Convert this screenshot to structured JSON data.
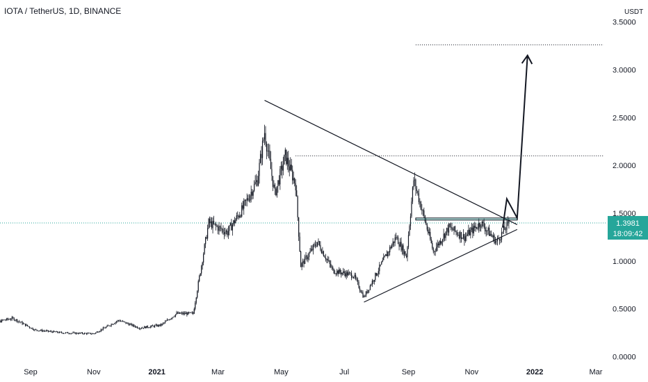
{
  "title": "IOTA / TetherUS, 1D, BINANCE",
  "price_badge": {
    "price": "1.3981",
    "countdown": "18:09:42",
    "color": "#26a69a"
  },
  "chart_data": {
    "type": "candlestick",
    "title": "IOTA / TetherUS, 1D, BINANCE",
    "y_unit": "USDT",
    "ylim": [
      0,
      3.6
    ],
    "y_ticks": [
      "3.5000",
      "3.0000",
      "2.5000",
      "2.0000",
      "1.5000",
      "1.0000",
      "0.5000",
      "0.0000"
    ],
    "x_ticks": [
      {
        "label": "Sep",
        "date": "2020-09-01",
        "bold": false
      },
      {
        "label": "Nov",
        "date": "2020-11-01",
        "bold": false
      },
      {
        "label": "2021",
        "date": "2021-01-01",
        "bold": true
      },
      {
        "label": "Mar",
        "date": "2021-03-01",
        "bold": false
      },
      {
        "label": "May",
        "date": "2021-05-01",
        "bold": false
      },
      {
        "label": "Jul",
        "date": "2021-07-01",
        "bold": false
      },
      {
        "label": "Sep",
        "date": "2021-09-01",
        "bold": false
      },
      {
        "label": "Nov",
        "date": "2021-11-01",
        "bold": false
      },
      {
        "label": "2022",
        "date": "2022-01-01",
        "bold": true
      },
      {
        "label": "Mar",
        "date": "2022-03-01",
        "bold": false
      }
    ],
    "xlim": [
      "2020-07-20",
      "2022-03-10"
    ],
    "last_price": 1.3981,
    "price_path": [
      {
        "date": "2020-07-20",
        "close": 0.3
      },
      {
        "date": "2020-08-05",
        "close": 0.38
      },
      {
        "date": "2020-08-15",
        "close": 0.4
      },
      {
        "date": "2020-09-05",
        "close": 0.28
      },
      {
        "date": "2020-10-01",
        "close": 0.25
      },
      {
        "date": "2020-11-01",
        "close": 0.24
      },
      {
        "date": "2020-11-25",
        "close": 0.38
      },
      {
        "date": "2020-12-15",
        "close": 0.3
      },
      {
        "date": "2021-01-05",
        "close": 0.33
      },
      {
        "date": "2021-01-20",
        "close": 0.45
      },
      {
        "date": "2021-02-05",
        "close": 0.45
      },
      {
        "date": "2021-02-20",
        "close": 1.4
      },
      {
        "date": "2021-03-10",
        "close": 1.3
      },
      {
        "date": "2021-03-25",
        "close": 1.55
      },
      {
        "date": "2021-04-08",
        "close": 1.85
      },
      {
        "date": "2021-04-15",
        "close": 2.35
      },
      {
        "date": "2021-04-25",
        "close": 1.7
      },
      {
        "date": "2021-05-05",
        "close": 2.1
      },
      {
        "date": "2021-05-15",
        "close": 1.8
      },
      {
        "date": "2021-05-20",
        "close": 0.95
      },
      {
        "date": "2021-06-05",
        "close": 1.2
      },
      {
        "date": "2021-06-20",
        "close": 0.9
      },
      {
        "date": "2021-07-10",
        "close": 0.85
      },
      {
        "date": "2021-07-20",
        "close": 0.62
      },
      {
        "date": "2021-08-05",
        "close": 0.95
      },
      {
        "date": "2021-08-20",
        "close": 1.25
      },
      {
        "date": "2021-08-30",
        "close": 1.05
      },
      {
        "date": "2021-09-06",
        "close": 1.85
      },
      {
        "date": "2021-09-15",
        "close": 1.5
      },
      {
        "date": "2021-09-25",
        "close": 1.1
      },
      {
        "date": "2021-10-10",
        "close": 1.35
      },
      {
        "date": "2021-10-25",
        "close": 1.25
      },
      {
        "date": "2021-11-10",
        "close": 1.4
      },
      {
        "date": "2021-11-25",
        "close": 1.2
      },
      {
        "date": "2021-12-07",
        "close": 1.3981
      }
    ],
    "annotations": [
      {
        "type": "trendline",
        "from": {
          "date": "2021-04-15",
          "price": 2.68
        },
        "to": {
          "date": "2021-12-15",
          "price": 1.38
        }
      },
      {
        "type": "trendline",
        "from": {
          "date": "2021-07-20",
          "price": 0.57
        },
        "to": {
          "date": "2021-12-15",
          "price": 1.33
        }
      },
      {
        "type": "horizontal_dotted",
        "price": 2.1,
        "from": "2021-05-15",
        "to": "2022-03-10"
      },
      {
        "type": "horizontal_dotted",
        "price": 3.26,
        "from": "2021-09-08",
        "to": "2022-03-10"
      },
      {
        "type": "rectangle",
        "price_top": 1.45,
        "price_bottom": 1.43,
        "from": "2021-09-08",
        "to": "2021-12-15",
        "color": "#26a69a"
      },
      {
        "type": "projection_path",
        "points": [
          {
            "date": "2021-12-01",
            "price": 1.35
          },
          {
            "date": "2021-12-05",
            "price": 1.65
          },
          {
            "date": "2021-12-15",
            "price": 1.45
          },
          {
            "date": "2021-12-25",
            "price": 3.15
          }
        ]
      }
    ]
  }
}
